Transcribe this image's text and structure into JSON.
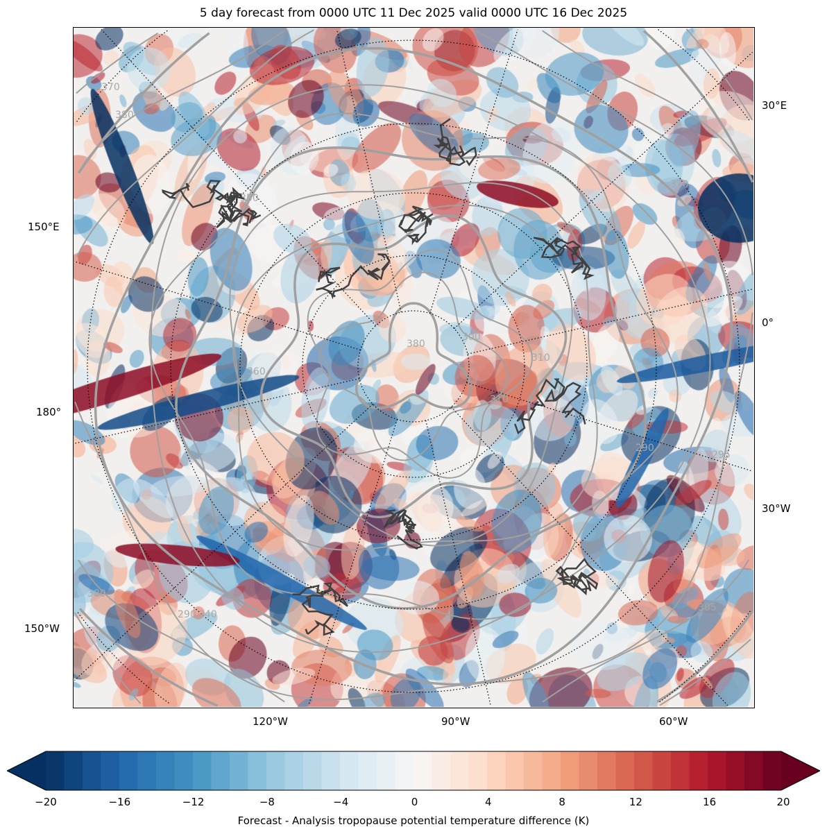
{
  "title": "5 day forecast from 0000 UTC 11 Dec 2025 valid 0000 UTC 16 Dec 2025",
  "map": {
    "projection": "north polar stereographic",
    "longitude_labels": {
      "right": [
        "30°E",
        "0°",
        "30°W"
      ],
      "left": [
        "150°E",
        "180°",
        "150°W"
      ],
      "bottom": [
        "120°W",
        "90°W",
        "60°W"
      ]
    },
    "contour_labels": [
      "370",
      "380",
      "350",
      "360",
      "380",
      "300",
      "310",
      "290",
      "295",
      "305",
      "340",
      "370",
      "380",
      "290",
      "310"
    ],
    "contour_color": "#a0a0a0",
    "coastline_color": "#404040"
  },
  "colorbar": {
    "min": -20,
    "max": 20,
    "step": 1,
    "extend": "both",
    "colormap": "RdBu_r",
    "ticks": [
      "−20",
      "−16",
      "−12",
      "−8",
      "−4",
      "0",
      "4",
      "8",
      "12",
      "16",
      "20"
    ],
    "label": "Forecast - Analysis tropopause potential temperature difference (K)"
  }
}
